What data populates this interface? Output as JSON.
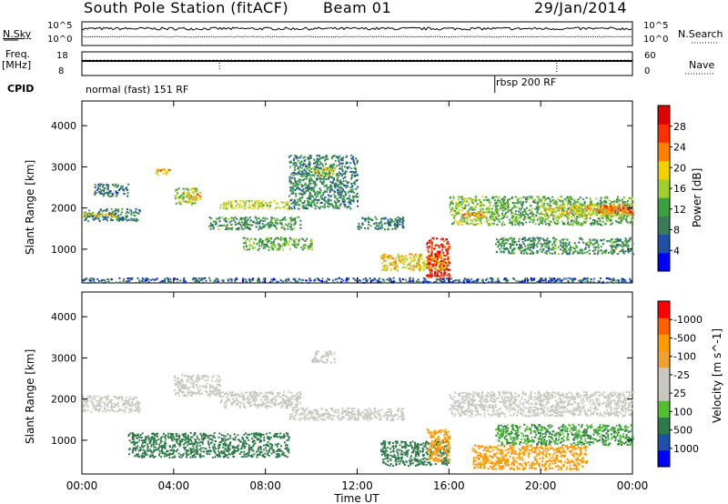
{
  "header": {
    "station": "South Pole Station (fitACF)",
    "beam": "Beam 01",
    "date": "29/Jan/2014"
  },
  "top_panels": {
    "nsky_label": "N.Sky",
    "nsearch_label": "N.Search",
    "freq_label_1": "Freq.",
    "freq_label_2": "[MHz]",
    "nave_label": "Nave",
    "cpid_label": "CPID",
    "noise_left_ticks": [
      "10^5",
      "10^0"
    ],
    "noise_right_ticks": [
      "10^5",
      "10^0"
    ],
    "freq_left_ticks": [
      "18",
      "8"
    ],
    "nave_right_ticks": [
      "60",
      "0"
    ],
    "cpid_segments": [
      {
        "label": "normal (fast) 151 RF",
        "start_hour": 0,
        "end_hour": 18
      },
      {
        "label": "rbsp 200 RF",
        "start_hour": 18,
        "end_hour": 24
      }
    ]
  },
  "time_axis": {
    "label": "Time UT",
    "ticks": [
      "00:00",
      "04:00",
      "08:00",
      "12:00",
      "16:00",
      "20:00",
      "00:00"
    ]
  },
  "colors": {
    "power_scale": [
      "#0000ff",
      "#1e50a8",
      "#3a7a5a",
      "#3da040",
      "#a0d030",
      "#f0d000",
      "#ff8000",
      "#ff3000",
      "#e00000"
    ],
    "velocity_scale": [
      "#ff0000",
      "#ff6000",
      "#ff9a00",
      "#f0a030",
      "#c8c8c0",
      "#c8c8c0",
      "#50c030",
      "#2f7a4a",
      "#1e50a8",
      "#0000ff"
    ]
  },
  "chart_data": [
    {
      "type": "heatmap",
      "name": "power",
      "ylabel": "Slant Range [km]",
      "y_ticks": [
        1000,
        2000,
        3000,
        4000
      ],
      "ylim": [
        180,
        4600
      ],
      "xlim": [
        0,
        24
      ],
      "colorbar_label": "Power [dB]",
      "colorbar_ticks": [
        4,
        8,
        12,
        16,
        20,
        24,
        28
      ],
      "colorbar_range": [
        0,
        30
      ],
      "regions": [
        {
          "x": [
            0,
            24
          ],
          "y": [
            200,
            320
          ],
          "v": 6
        },
        {
          "x": [
            0,
            2.5
          ],
          "y": [
            1700,
            2000
          ],
          "v": 8
        },
        {
          "x": [
            0,
            1.5
          ],
          "y": [
            1800,
            1900
          ],
          "v": 18
        },
        {
          "x": [
            0.5,
            2
          ],
          "y": [
            2300,
            2600
          ],
          "v": 7
        },
        {
          "x": [
            3.2,
            3.8
          ],
          "y": [
            2800,
            3000
          ],
          "v": 20
        },
        {
          "x": [
            4,
            5
          ],
          "y": [
            2100,
            2500
          ],
          "v": 14
        },
        {
          "x": [
            4.5,
            5.2
          ],
          "y": [
            2200,
            2400
          ],
          "v": 20
        },
        {
          "x": [
            5.5,
            9.5
          ],
          "y": [
            1500,
            1800
          ],
          "v": 10
        },
        {
          "x": [
            6,
            9
          ],
          "y": [
            2000,
            2200
          ],
          "v": 16
        },
        {
          "x": [
            7,
            10
          ],
          "y": [
            1000,
            1300
          ],
          "v": 12
        },
        {
          "x": [
            9,
            12
          ],
          "y": [
            2000,
            3300
          ],
          "v": 9
        },
        {
          "x": [
            10,
            11
          ],
          "y": [
            2800,
            3000
          ],
          "v": 16
        },
        {
          "x": [
            12,
            14
          ],
          "y": [
            1500,
            1800
          ],
          "v": 8
        },
        {
          "x": [
            13,
            16
          ],
          "y": [
            500,
            900
          ],
          "v": 18
        },
        {
          "x": [
            15,
            16
          ],
          "y": [
            300,
            1300
          ],
          "v": 26
        },
        {
          "x": [
            16,
            18
          ],
          "y": [
            1600,
            2300
          ],
          "v": 14
        },
        {
          "x": [
            16.5,
            17.5
          ],
          "y": [
            1800,
            1900
          ],
          "v": 22
        },
        {
          "x": [
            18,
            24
          ],
          "y": [
            1600,
            2300
          ],
          "v": 12
        },
        {
          "x": [
            20,
            24
          ],
          "y": [
            1800,
            2100
          ],
          "v": 18
        },
        {
          "x": [
            22.5,
            24
          ],
          "y": [
            1900,
            2100
          ],
          "v": 24
        },
        {
          "x": [
            18,
            24
          ],
          "y": [
            900,
            1300
          ],
          "v": 10
        }
      ]
    },
    {
      "type": "heatmap",
      "name": "velocity",
      "ylabel": "Slant Range [km]",
      "y_ticks": [
        1000,
        2000,
        3000,
        4000
      ],
      "ylim": [
        180,
        4600
      ],
      "xlim": [
        0,
        24
      ],
      "colorbar_label": "Velocity [m s^-1]",
      "colorbar_ticks": [
        1000,
        500,
        100,
        25,
        -25,
        -100,
        -500,
        -1000
      ],
      "regions": [
        {
          "x": [
            0,
            2.5
          ],
          "y": [
            1700,
            2100
          ],
          "v": 0
        },
        {
          "x": [
            4,
            6
          ],
          "y": [
            2100,
            2600
          ],
          "v": 0
        },
        {
          "x": [
            6,
            9.5
          ],
          "y": [
            1800,
            2200
          ],
          "v": 0
        },
        {
          "x": [
            9,
            14
          ],
          "y": [
            1500,
            1800
          ],
          "v": 10
        },
        {
          "x": [
            10,
            11
          ],
          "y": [
            2900,
            3200
          ],
          "v": 0
        },
        {
          "x": [
            13,
            16
          ],
          "y": [
            400,
            1000
          ],
          "v": 200
        },
        {
          "x": [
            2,
            9
          ],
          "y": [
            600,
            1200
          ],
          "v": 200
        },
        {
          "x": [
            15,
            16
          ],
          "y": [
            500,
            1300
          ],
          "v": -300
        },
        {
          "x": [
            16,
            24
          ],
          "y": [
            1600,
            2200
          ],
          "v": 0
        },
        {
          "x": [
            17,
            22
          ],
          "y": [
            300,
            900
          ],
          "v": -200
        },
        {
          "x": [
            18,
            24
          ],
          "y": [
            900,
            1400
          ],
          "v": 100
        }
      ]
    }
  ]
}
